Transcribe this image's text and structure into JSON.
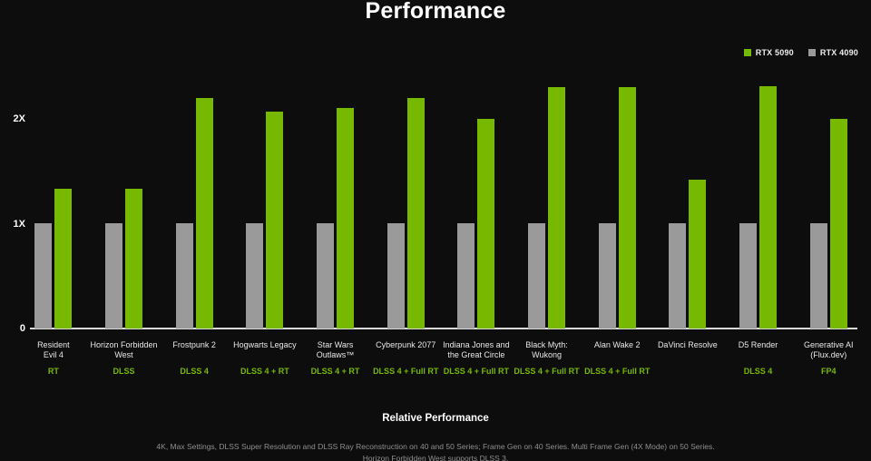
{
  "chart_data": {
    "type": "bar",
    "title": "Performance",
    "xlabel": "Relative Performance",
    "ylabel": "",
    "yticks": [
      "0",
      "1X",
      "2X"
    ],
    "ylim": [
      0,
      2.5
    ],
    "grid": false,
    "legend_position": "top-right",
    "colors": {
      "background": "#0d0d0d",
      "rtx5090_green": "#76b900",
      "rtx4090_gray": "#9a9a9a",
      "axis_line": "#d9d9d9",
      "footnote_gray": "#8f8f8f"
    },
    "legend": {
      "items": [
        {
          "label": "RTX 5090",
          "color": "#76b900",
          "swatch": "green-square-icon"
        },
        {
          "label": "RTX 4090",
          "color": "#9a9a9a",
          "swatch": "gray-square-icon"
        }
      ]
    },
    "categories": [
      "Resident Evil 4",
      "Horizon Forbidden West",
      "Frostpunk 2",
      "Hogwarts Legacy",
      "Star Wars Outlaws™",
      "Cyberpunk 2077",
      "Indiana Jones and the Great Circle",
      "Black Myth: Wukong",
      "Alan Wake 2",
      "DaVinci Resolve",
      "D5 Render",
      "Generative AI (Flux.dev)"
    ],
    "category_lines": [
      [
        "Resident",
        "Evil 4"
      ],
      [
        "Horizon Forbidden",
        "West"
      ],
      [
        "Frostpunk 2"
      ],
      [
        "Hogwarts Legacy"
      ],
      [
        "Star Wars",
        "Outlaws™"
      ],
      [
        "Cyberpunk 2077"
      ],
      [
        "Indiana Jones and",
        "the Great Circle"
      ],
      [
        "Black Myth:",
        "Wukong"
      ],
      [
        "Alan Wake 2"
      ],
      [
        "DaVinci Resolve"
      ],
      [
        "D5 Render"
      ],
      [
        "Generative AI",
        "(Flux.dev)"
      ]
    ],
    "tech_labels": [
      "RT",
      "DLSS",
      "DLSS 4",
      "DLSS 4 + RT",
      "DLSS 4 + RT",
      "DLSS 4 + Full RT",
      "DLSS 4 + Full RT",
      "DLSS 4 + Full RT",
      "DLSS 4 + Full RT",
      "",
      "DLSS 4",
      "FP4"
    ],
    "series": [
      {
        "name": "RTX 4090",
        "color": "#9a9a9a",
        "values": [
          1,
          1,
          1,
          1,
          1,
          1,
          1,
          1,
          1,
          1,
          1,
          1
        ]
      },
      {
        "name": "RTX 5090",
        "color": "#76b900",
        "values": [
          1.33,
          1.33,
          2.2,
          2.07,
          2.1,
          2.2,
          2.0,
          2.3,
          2.3,
          1.42,
          2.31,
          2.0
        ]
      }
    ],
    "footnote_lines": [
      "4K, Max Settings, DLSS Super Resolution and DLSS Ray Reconstruction on 40 and 50 Series; Frame Gen on 40 Series. Multi Frame Gen (4X Mode) on 50 Series.",
      "Horizon Forbidden West supports DLSS 3."
    ]
  }
}
